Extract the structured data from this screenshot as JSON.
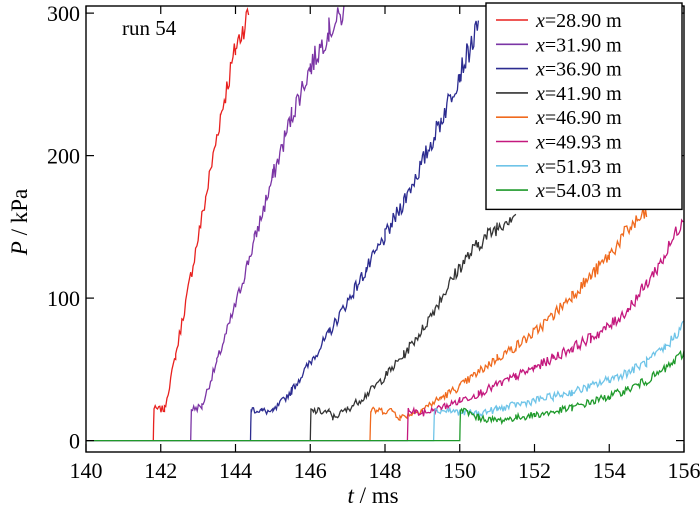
{
  "chart_data": {
    "type": "line",
    "annotation": "run 54",
    "xlabel_var": "t",
    "xlabel_unit": " / ms",
    "ylabel_var": "P",
    "ylabel_unit": " / kPa",
    "xlim": [
      140,
      156
    ],
    "ylim": [
      -8,
      305
    ],
    "xticks": [
      140,
      142,
      144,
      146,
      148,
      150,
      152,
      154,
      156
    ],
    "yticks": [
      0,
      100,
      200,
      300
    ],
    "legend_position": "top-right",
    "series": [
      {
        "name": "x=28.90 m",
        "var": "x",
        "label": "=28.90 m",
        "color": "#e8211f",
        "points": [
          [
            140,
            0
          ],
          [
            141.8,
            0
          ],
          [
            141.82,
            22
          ],
          [
            142.1,
            22
          ],
          [
            142.4,
            60
          ],
          [
            142.8,
            115
          ],
          [
            143.2,
            170
          ],
          [
            143.6,
            228
          ],
          [
            144.0,
            275
          ],
          [
            144.35,
            300
          ]
        ]
      },
      {
        "name": "x=31.90 m",
        "var": "x",
        "label": "=31.90 m",
        "color": "#7b35a5",
        "points": [
          [
            140,
            0
          ],
          [
            142.8,
            0
          ],
          [
            142.82,
            22
          ],
          [
            143.1,
            24
          ],
          [
            143.5,
            55
          ],
          [
            144.0,
            95
          ],
          [
            144.5,
            140
          ],
          [
            145.0,
            185
          ],
          [
            145.5,
            228
          ],
          [
            146.0,
            262
          ],
          [
            146.5,
            288
          ],
          [
            146.9,
            300
          ]
        ]
      },
      {
        "name": "x=36.90 m",
        "var": "x",
        "label": "=36.90 m",
        "color": "#2c2c90",
        "points": [
          [
            140,
            0
          ],
          [
            144.4,
            0
          ],
          [
            144.42,
            22
          ],
          [
            144.7,
            21
          ],
          [
            145.0,
            20
          ],
          [
            145.5,
            35
          ],
          [
            146.0,
            55
          ],
          [
            146.5,
            75
          ],
          [
            147.0,
            98
          ],
          [
            147.5,
            120
          ],
          [
            148.0,
            143
          ],
          [
            148.5,
            168
          ],
          [
            149.0,
            195
          ],
          [
            149.5,
            225
          ],
          [
            150.0,
            258
          ],
          [
            150.5,
            290
          ]
        ]
      },
      {
        "name": "x=41.90 m",
        "var": "x",
        "label": "=41.90 m",
        "color": "#333333",
        "points": [
          [
            140,
            0
          ],
          [
            146.0,
            0
          ],
          [
            146.02,
            21
          ],
          [
            146.5,
            20
          ],
          [
            146.6,
            16
          ],
          [
            147.0,
            22
          ],
          [
            147.5,
            32
          ],
          [
            148.0,
            45
          ],
          [
            148.5,
            60
          ],
          [
            149.0,
            78
          ],
          [
            149.5,
            100
          ],
          [
            150.0,
            122
          ],
          [
            150.5,
            138
          ],
          [
            151.0,
            150
          ],
          [
            151.5,
            160
          ]
        ]
      },
      {
        "name": "x=46.90 m",
        "var": "x",
        "label": "=46.90 m",
        "color": "#f06a1e",
        "points": [
          [
            140,
            0
          ],
          [
            147.6,
            0
          ],
          [
            147.62,
            21
          ],
          [
            148.2,
            21
          ],
          [
            148.4,
            16
          ],
          [
            149.0,
            22
          ],
          [
            149.5,
            30
          ],
          [
            150.0,
            38
          ],
          [
            150.5,
            48
          ],
          [
            151.0,
            58
          ],
          [
            151.5,
            66
          ],
          [
            152.0,
            76
          ],
          [
            152.5,
            88
          ],
          [
            153.0,
            102
          ],
          [
            153.5,
            115
          ],
          [
            154.0,
            130
          ],
          [
            154.5,
            148
          ],
          [
            155.0,
            160
          ]
        ]
      },
      {
        "name": "x=49.93 m",
        "var": "x",
        "label": "=49.93 m",
        "color": "#c4197e",
        "points": [
          [
            140,
            0
          ],
          [
            148.6,
            0
          ],
          [
            148.62,
            21
          ],
          [
            148.8,
            20
          ],
          [
            149.0,
            19
          ],
          [
            149.5,
            23
          ],
          [
            150.0,
            28
          ],
          [
            150.5,
            33
          ],
          [
            151.0,
            39
          ],
          [
            151.5,
            45
          ],
          [
            152.0,
            51
          ],
          [
            152.5,
            58
          ],
          [
            153.0,
            65
          ],
          [
            153.5,
            72
          ],
          [
            154.0,
            80
          ],
          [
            154.5,
            92
          ],
          [
            155.0,
            110
          ],
          [
            155.5,
            130
          ],
          [
            156,
            158
          ]
        ]
      },
      {
        "name": "x=51.93 m",
        "var": "x",
        "label": "=51.93 m",
        "color": "#6fc4e8",
        "points": [
          [
            140,
            0
          ],
          [
            149.3,
            0
          ],
          [
            149.32,
            21
          ],
          [
            149.7,
            21
          ],
          [
            150.0,
            20
          ],
          [
            150.5,
            19
          ],
          [
            151.0,
            22
          ],
          [
            151.5,
            25
          ],
          [
            152.0,
            28
          ],
          [
            152.5,
            31
          ],
          [
            153.0,
            34
          ],
          [
            153.5,
            38
          ],
          [
            154.0,
            43
          ],
          [
            154.5,
            48
          ],
          [
            155.0,
            55
          ],
          [
            155.5,
            65
          ],
          [
            156,
            82
          ]
        ]
      },
      {
        "name": "x=54.03 m",
        "var": "x",
        "label": "=54.03 m",
        "color": "#1f9a2b",
        "points": [
          [
            140,
            0
          ],
          [
            150.0,
            0
          ],
          [
            150.02,
            22
          ],
          [
            150.2,
            20
          ],
          [
            150.5,
            16
          ],
          [
            151.0,
            14
          ],
          [
            151.5,
            16
          ],
          [
            152.0,
            18
          ],
          [
            152.5,
            20
          ],
          [
            153.0,
            23
          ],
          [
            153.5,
            27
          ],
          [
            154.0,
            31
          ],
          [
            154.5,
            36
          ],
          [
            155.0,
            42
          ],
          [
            155.5,
            50
          ],
          [
            156,
            62
          ]
        ]
      }
    ]
  }
}
